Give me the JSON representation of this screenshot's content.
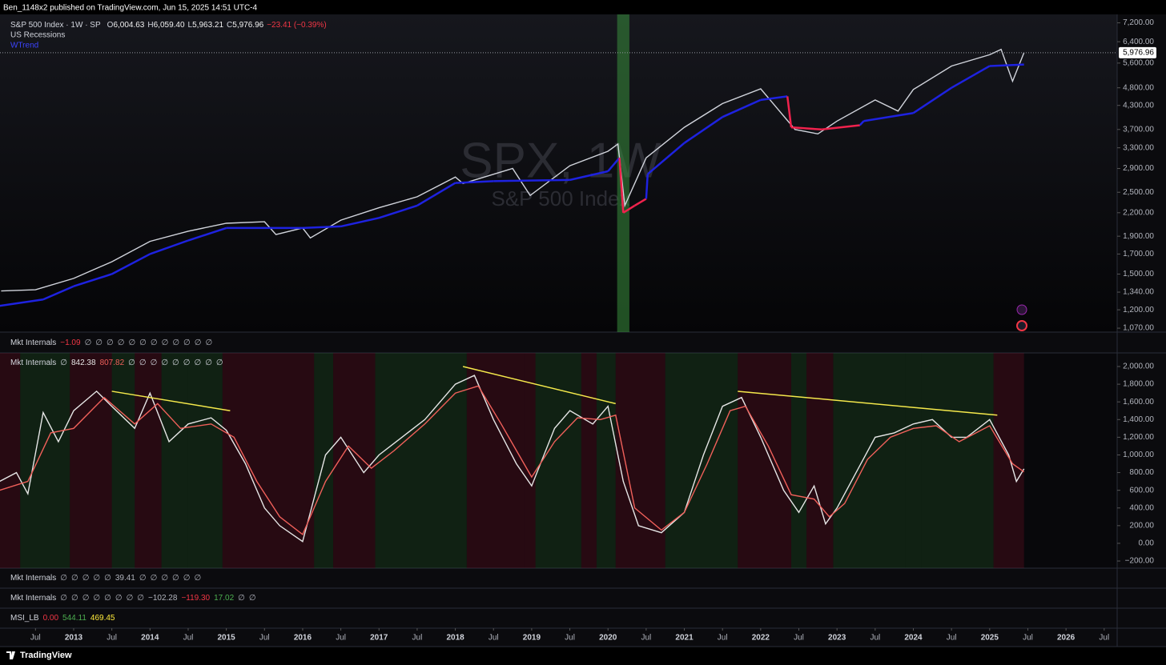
{
  "header": {
    "publisher": "Ben_1148x2 published on TradingView.com, Jun 15, 2025 14:51 UTC-4"
  },
  "footer": {
    "brand": "TradingView"
  },
  "chart_data": [
    {
      "type": "line",
      "log_scale": true,
      "watermark": "SPX, 1W",
      "watermark_subtitle": "S&P 500 Index",
      "ohlc": [
        {
          "label": "O",
          "value": "6,004.63"
        },
        {
          "label": "H",
          "value": "6,059.40"
        },
        {
          "label": "L",
          "value": "5,963.21"
        },
        {
          "label": "C",
          "value": "5,976.96"
        }
      ],
      "change": "−23.41 (−0.39%)",
      "change_color": "#f23645",
      "recessions": {
        "name": "US Recessions",
        "color": "rgba(56,142,60,0.55)",
        "spans": [
          [
            2020.12,
            2020.28
          ]
        ]
      },
      "last_price": {
        "value": 5976.96,
        "label": "5,976.96"
      },
      "xlim": [
        2012.035,
        2026.67
      ],
      "xticks": [
        {
          "value": 2012.5,
          "label": "Jul"
        },
        2013,
        {
          "value": 2013.5,
          "label": "Jul"
        },
        2014,
        {
          "value": 2014.5,
          "label": "Jul"
        },
        2015,
        {
          "value": 2015.5,
          "label": "Jul"
        },
        2016,
        {
          "value": 2016.5,
          "label": "Jul"
        },
        2017,
        {
          "value": 2017.5,
          "label": "Jul"
        },
        2018,
        {
          "value": 2018.5,
          "label": "Jul"
        },
        2019,
        {
          "value": 2019.5,
          "label": "Jul"
        },
        2020,
        {
          "value": 2020.5,
          "label": "Jul"
        },
        2021,
        {
          "value": 2021.5,
          "label": "Jul"
        },
        2022,
        {
          "value": 2022.5,
          "label": "Jul"
        },
        2023,
        {
          "value": 2023.5,
          "label": "Jul"
        },
        2024,
        {
          "value": 2024.5,
          "label": "Jul"
        },
        2025,
        {
          "value": 2025.5,
          "label": "Jul"
        },
        2026,
        {
          "value": 2026.5,
          "label": "Jul"
        }
      ],
      "ylim": [
        1044,
        7590
      ],
      "yticks": [
        {
          "value": 7200,
          "label": "7,200.00"
        },
        {
          "value": 6400,
          "label": "6,400.00"
        },
        {
          "value": 5600,
          "label": "5,600.00"
        },
        {
          "value": 4800,
          "label": "4,800.00"
        },
        {
          "value": 4300,
          "label": "4,300.00"
        },
        {
          "value": 3700,
          "label": "3,700.00"
        },
        {
          "value": 3300,
          "label": "3,300.00"
        },
        {
          "value": 2900,
          "label": "2,900.00"
        },
        {
          "value": 2500,
          "label": "2,500.00"
        },
        {
          "value": 2200,
          "label": "2,200.00"
        },
        {
          "value": 1900,
          "label": "1,900.00"
        },
        {
          "value": 1700,
          "label": "1,700.00"
        },
        {
          "value": 1500,
          "label": "1,500.00"
        },
        {
          "value": 1340,
          "label": "1,340.00"
        },
        {
          "value": 1200,
          "label": "1,200.00"
        },
        {
          "value": 1070,
          "label": "1,070.00"
        }
      ],
      "series": [
        {
          "name": "S&P 500 Index · 1W · SP",
          "color": "#d1d4dc",
          "x": [
            2012.05,
            2012.5,
            2013.0,
            2013.5,
            2014.0,
            2014.5,
            2015.0,
            2015.5,
            2015.65,
            2016.0,
            2016.1,
            2016.5,
            2017.0,
            2017.5,
            2018.0,
            2018.1,
            2018.75,
            2018.98,
            2019.5,
            2020.0,
            2020.13,
            2020.22,
            2020.5,
            2021.0,
            2021.5,
            2022.0,
            2022.45,
            2022.75,
            2023.0,
            2023.5,
            2023.8,
            2024.0,
            2024.5,
            2025.0,
            2025.15,
            2025.3,
            2025.45
          ],
          "values": [
            1350,
            1360,
            1460,
            1620,
            1840,
            1960,
            2060,
            2080,
            1920,
            2000,
            1880,
            2100,
            2270,
            2430,
            2750,
            2640,
            2900,
            2450,
            2950,
            3230,
            3380,
            2300,
            3100,
            3750,
            4350,
            4770,
            3700,
            3600,
            3900,
            4450,
            4150,
            4750,
            5500,
            5900,
            6100,
            5000,
            5976.96
          ]
        },
        {
          "name": "WTrend",
          "color": "#1e22e0",
          "down_color": "#f0224d",
          "x": [
            2012.03,
            2012.6,
            2013.0,
            2013.5,
            2014.0,
            2014.5,
            2015.0,
            2016.0,
            2016.5,
            2017.0,
            2017.5,
            2018.0,
            2018.5,
            2019.5,
            2020.0,
            2020.15,
            2020.2,
            2020.35,
            2020.5,
            2020.52,
            2021.0,
            2021.5,
            2022.0,
            2022.35,
            2022.4,
            2022.8,
            2023.3,
            2023.35,
            2024.0,
            2024.5,
            2025.0,
            2025.45
          ],
          "values": [
            1230,
            1280,
            1390,
            1500,
            1700,
            1850,
            2000,
            2000,
            2020,
            2130,
            2300,
            2650,
            2680,
            2700,
            2850,
            3100,
            2200,
            2300,
            2400,
            2800,
            3400,
            4000,
            4450,
            4550,
            3750,
            3700,
            3800,
            3900,
            4100,
            4800,
            5500,
            5550
          ],
          "states": [
            "up",
            "up",
            "up",
            "up",
            "up",
            "up",
            "up",
            "up",
            "up",
            "up",
            "up",
            "up",
            "up",
            "up",
            "up",
            "up",
            "down",
            "down",
            "down",
            "up",
            "up",
            "up",
            "up",
            "up",
            "down",
            "down",
            "down",
            "up",
            "up",
            "up",
            "up",
            "up"
          ]
        }
      ]
    },
    {
      "type": "line",
      "title": "Mkt Internals",
      "legend_before": [
        "∅"
      ],
      "legend_after": [
        "∅",
        "∅",
        "∅",
        "∅",
        "∅",
        "∅",
        "∅",
        "∅",
        "∅"
      ],
      "xlim": [
        2012.035,
        2026.67
      ],
      "ylim": [
        -281,
        2154
      ],
      "yticks": [
        {
          "value": 2000,
          "label": "2,000.00"
        },
        {
          "value": 1800,
          "label": "1,800.00"
        },
        {
          "value": 1600,
          "label": "1,600.00"
        },
        {
          "value": 1400,
          "label": "1,400.00"
        },
        {
          "value": 1200,
          "label": "1,200.00"
        },
        {
          "value": 1000,
          "label": "1,000.00"
        },
        {
          "value": 800,
          "label": "800.00"
        },
        {
          "value": 600,
          "label": "600.00"
        },
        {
          "value": 400,
          "label": "400.00"
        },
        {
          "value": 200,
          "label": "200.00"
        },
        {
          "value": 0,
          "label": "0.00"
        },
        {
          "value": -200,
          "label": "−200.00"
        }
      ],
      "bands": {
        "up_color": "rgba(46,125,50,0.22)",
        "down_color": "rgba(150,20,45,0.22)",
        "edges": [
          2012.03,
          2012.3,
          2012.95,
          2013.5,
          2013.8,
          2014.15,
          2014.5,
          2014.95,
          2016.15,
          2016.4,
          2016.75,
          2016.95,
          2018.15,
          2018.9,
          2019.05,
          2019.65,
          2019.85,
          2020.1,
          2020.75,
          2021.7,
          2022.4,
          2022.6,
          2022.95,
          2023.9,
          2024.1,
          2024.65,
          2025.05,
          2025.45
        ],
        "states": [
          "down",
          "up",
          "down",
          "up",
          "down",
          "up",
          "up",
          "down",
          "up",
          "down",
          "down",
          "up",
          "down",
          "down",
          "up",
          "down",
          "up",
          "down",
          "up",
          "down",
          "up",
          "down",
          "up",
          "up",
          "up",
          "up",
          "down"
        ]
      },
      "trendlines": {
        "color": "#f5e94b",
        "lines": [
          {
            "x": [
              2013.5,
              2015.05
            ],
            "y": [
              1720,
              1500
            ]
          },
          {
            "x": [
              2018.1,
              2020.1
            ],
            "y": [
              2000,
              1580
            ]
          },
          {
            "x": [
              2021.7,
              2025.1
            ],
            "y": [
              1720,
              1450
            ]
          }
        ]
      },
      "series": [
        {
          "color": "#e6e6e6",
          "x": [
            2012.03,
            2012.25,
            2012.4,
            2012.6,
            2012.8,
            2013.0,
            2013.3,
            2013.5,
            2013.8,
            2014.0,
            2014.25,
            2014.5,
            2014.8,
            2015.0,
            2015.25,
            2015.5,
            2015.7,
            2016.0,
            2016.3,
            2016.5,
            2016.8,
            2017.0,
            2017.3,
            2017.6,
            2018.0,
            2018.25,
            2018.5,
            2018.8,
            2019.0,
            2019.3,
            2019.5,
            2019.8,
            2020.0,
            2020.2,
            2020.4,
            2020.7,
            2021.0,
            2021.25,
            2021.5,
            2021.75,
            2022.0,
            2022.3,
            2022.5,
            2022.7,
            2022.85,
            2023.0,
            2023.25,
            2023.5,
            2023.75,
            2024.0,
            2024.25,
            2024.5,
            2024.7,
            2025.0,
            2025.25,
            2025.35,
            2025.45
          ],
          "values": [
            700,
            800,
            560,
            1480,
            1150,
            1500,
            1720,
            1550,
            1300,
            1700,
            1150,
            1350,
            1420,
            1280,
            900,
            400,
            200,
            20,
            1000,
            1200,
            800,
            1000,
            1200,
            1400,
            1800,
            1900,
            1400,
            900,
            650,
            1300,
            1500,
            1350,
            1550,
            700,
            200,
            120,
            350,
            1000,
            1550,
            1650,
            1200,
            600,
            350,
            650,
            220,
            400,
            800,
            1200,
            1250,
            1350,
            1400,
            1200,
            1200,
            1400,
            1000,
            700,
            842.38
          ]
        },
        {
          "color": "#f0605a",
          "x": [
            2012.03,
            2012.4,
            2012.7,
            2013.0,
            2013.4,
            2013.8,
            2014.1,
            2014.4,
            2014.8,
            2015.1,
            2015.4,
            2015.7,
            2016.0,
            2016.3,
            2016.6,
            2016.9,
            2017.2,
            2017.6,
            2018.0,
            2018.3,
            2018.6,
            2019.0,
            2019.3,
            2019.6,
            2019.9,
            2020.1,
            2020.35,
            2020.7,
            2021.0,
            2021.3,
            2021.6,
            2021.8,
            2022.1,
            2022.4,
            2022.7,
            2022.9,
            2023.1,
            2023.4,
            2023.7,
            2024.0,
            2024.3,
            2024.6,
            2025.0,
            2025.3,
            2025.45
          ],
          "values": [
            600,
            700,
            1250,
            1300,
            1650,
            1350,
            1580,
            1300,
            1350,
            1200,
            700,
            300,
            100,
            700,
            1100,
            850,
            1050,
            1350,
            1700,
            1780,
            1350,
            750,
            1150,
            1420,
            1400,
            1450,
            400,
            150,
            350,
            900,
            1500,
            1550,
            1100,
            550,
            500,
            300,
            450,
            950,
            1200,
            1300,
            1330,
            1150,
            1330,
            900,
            807.82
          ]
        }
      ]
    }
  ],
  "panes": [
    {
      "title": "Mkt Internals",
      "items": [
        "−1.09",
        "∅",
        "∅",
        "∅",
        "∅",
        "∅",
        "∅",
        "∅",
        "∅",
        "∅",
        "∅",
        "∅",
        "∅"
      ],
      "colors": [
        "#f23645",
        "#b2b5be",
        "#b2b5be",
        "#b2b5be",
        "#b2b5be",
        "#b2b5be",
        "#b2b5be",
        "#b2b5be",
        "#b2b5be",
        "#b2b5be",
        "#b2b5be",
        "#b2b5be",
        "#b2b5be"
      ]
    },
    {
      "title": "Mkt Internals",
      "items": [
        "∅",
        "∅",
        "∅",
        "∅",
        "∅",
        "39.41",
        "∅",
        "∅",
        "∅",
        "∅",
        "∅",
        "∅"
      ],
      "colors": [
        "#b2b5be",
        "#b2b5be",
        "#b2b5be",
        "#b2b5be",
        "#b2b5be",
        "#b2b5be",
        "#b2b5be",
        "#b2b5be",
        "#b2b5be",
        "#b2b5be",
        "#b2b5be",
        "#b2b5be"
      ]
    },
    {
      "title": "Mkt Internals",
      "items": [
        "∅",
        "∅",
        "∅",
        "∅",
        "∅",
        "∅",
        "∅",
        "∅",
        "−102.28",
        "−119.30",
        "17.02",
        "∅",
        "∅"
      ],
      "colors": [
        "#b2b5be",
        "#b2b5be",
        "#b2b5be",
        "#b2b5be",
        "#b2b5be",
        "#b2b5be",
        "#b2b5be",
        "#b2b5be",
        "#b2b5be",
        "#f23645",
        "#4caf50",
        "#b2b5be",
        "#b2b5be"
      ]
    },
    {
      "title": "MSI_LB",
      "items": [
        "0.00",
        "544.11",
        "469.45"
      ],
      "colors": [
        "#f23645",
        "#4caf50",
        "#ffeb3b"
      ]
    }
  ]
}
